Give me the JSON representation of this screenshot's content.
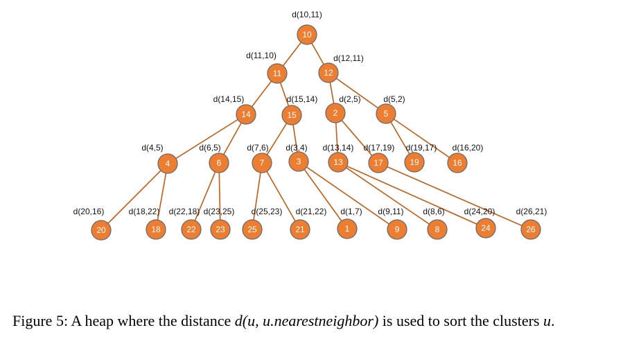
{
  "nodes": [
    {
      "id": "10",
      "label": "d(10,11)"
    },
    {
      "id": "11",
      "label": "d(11,10)"
    },
    {
      "id": "12",
      "label": "d(12,11)"
    },
    {
      "id": "14",
      "label": "d(14,15)"
    },
    {
      "id": "15",
      "label": "d(15,14)"
    },
    {
      "id": "2",
      "label": "d(2,5)"
    },
    {
      "id": "5",
      "label": "d(5,2)"
    },
    {
      "id": "4",
      "label": "d(4,5)"
    },
    {
      "id": "6",
      "label": "d(6,5)"
    },
    {
      "id": "7",
      "label": "d(7,6)"
    },
    {
      "id": "3",
      "label": "d(3,4)"
    },
    {
      "id": "13",
      "label": "d(13,14)"
    },
    {
      "id": "17",
      "label": "d(17,19)"
    },
    {
      "id": "19",
      "label": "d(19,17)"
    },
    {
      "id": "16",
      "label": "d(16,20)"
    },
    {
      "id": "20",
      "label": "d(20,16)"
    },
    {
      "id": "18",
      "label": "d(18,22)"
    },
    {
      "id": "22",
      "label": "d(22,18)"
    },
    {
      "id": "23",
      "label": "d(23,25)"
    },
    {
      "id": "25",
      "label": "d(25,23)"
    },
    {
      "id": "21",
      "label": "d(21,22)"
    },
    {
      "id": "1",
      "label": "d(1,7)"
    },
    {
      "id": "9",
      "label": "d(9,11)"
    },
    {
      "id": "8",
      "label": "d(8,6)"
    },
    {
      "id": "24",
      "label": "d(24,20)"
    },
    {
      "id": "26",
      "label": "d(26,21)"
    }
  ],
  "edges": [
    [
      "10",
      "11"
    ],
    [
      "10",
      "12"
    ],
    [
      "11",
      "14"
    ],
    [
      "11",
      "15"
    ],
    [
      "12",
      "2"
    ],
    [
      "12",
      "5"
    ],
    [
      "14",
      "4"
    ],
    [
      "14",
      "6"
    ],
    [
      "15",
      "7"
    ],
    [
      "15",
      "3"
    ],
    [
      "2",
      "13"
    ],
    [
      "2",
      "17"
    ],
    [
      "5",
      "19"
    ],
    [
      "5",
      "16"
    ],
    [
      "4",
      "20"
    ],
    [
      "4",
      "18"
    ],
    [
      "6",
      "22"
    ],
    [
      "6",
      "23"
    ],
    [
      "7",
      "25"
    ],
    [
      "7",
      "21"
    ],
    [
      "3",
      "1"
    ],
    [
      "3",
      "9"
    ],
    [
      "13",
      "8"
    ],
    [
      "13",
      "24"
    ],
    [
      "17",
      "26"
    ]
  ],
  "caption": {
    "prefix": "Figure 5: A heap where the distance ",
    "math": "d(u, u.nearestneighbor)",
    "middle": " is used to sort the clusters ",
    "math2": "u",
    "suffix": "."
  },
  "colors": {
    "node_fill": "#ed7d31",
    "edge": "#c55a11",
    "node_stroke": "#6b6b6b"
  }
}
